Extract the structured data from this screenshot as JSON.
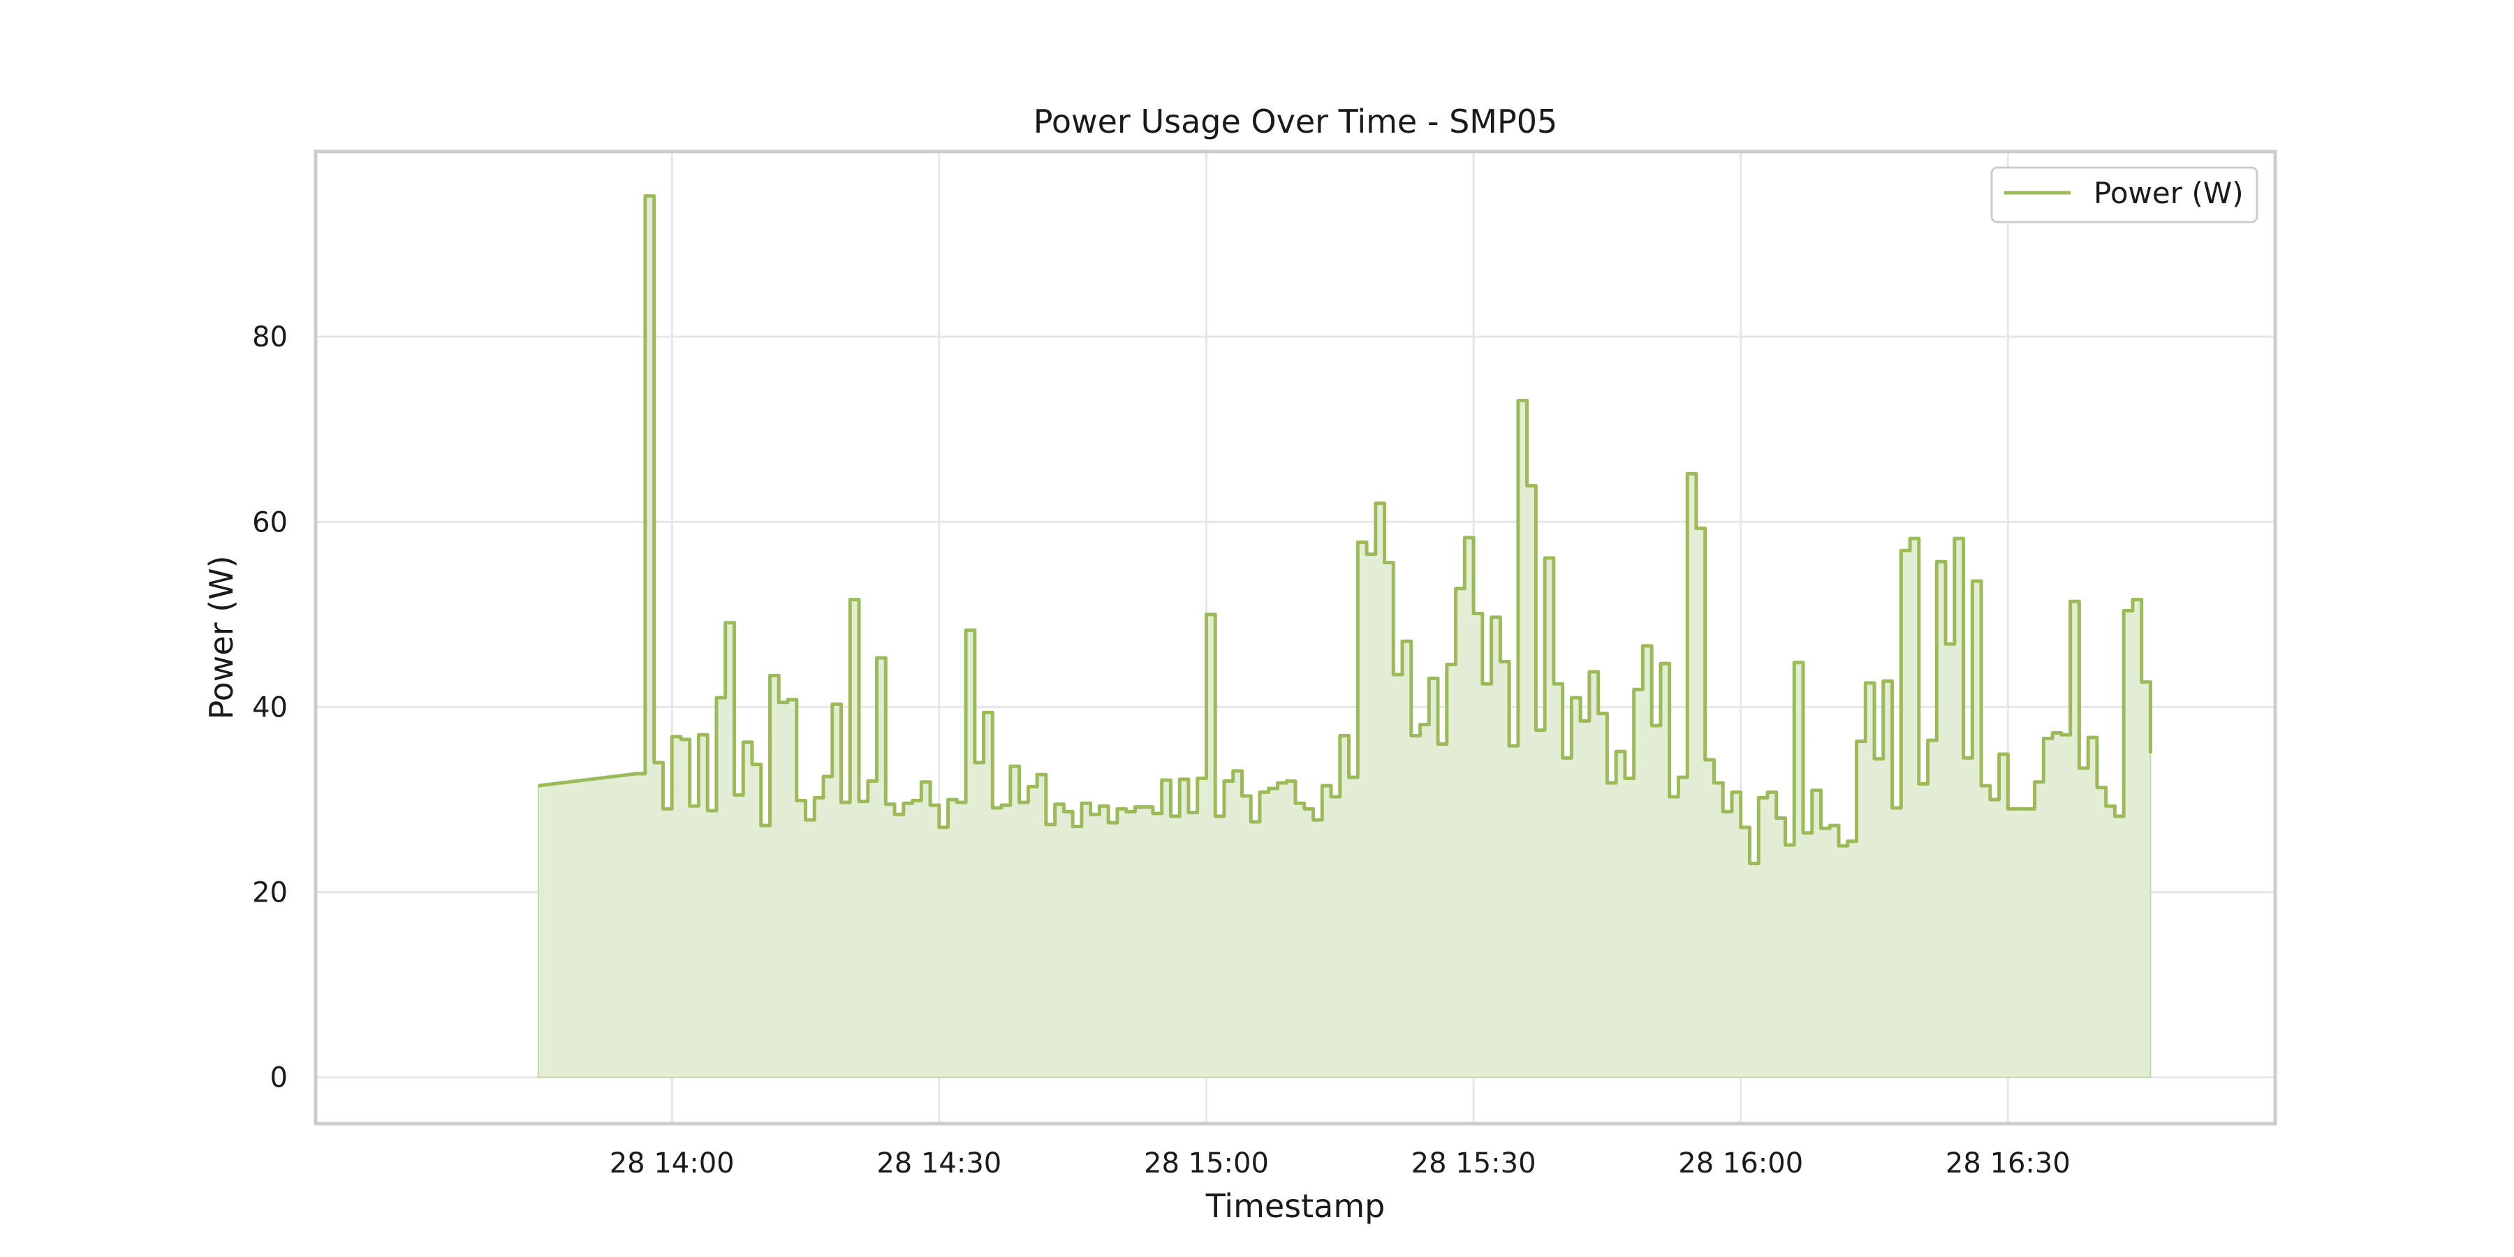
{
  "chart_data": {
    "type": "area",
    "title": "Power Usage Over Time - SMP05",
    "xlabel": "Timestamp",
    "ylabel": "Power (W)",
    "ylim": [
      -5,
      100
    ],
    "xlim": [
      "2024-01-28 13:20",
      "2024-01-28 17:00"
    ],
    "yticks": [
      0,
      20,
      40,
      60,
      80
    ],
    "xticks": [
      {
        "t": "2024-01-28 14:00",
        "label": "28 14:00"
      },
      {
        "t": "2024-01-28 14:30",
        "label": "28 14:30"
      },
      {
        "t": "2024-01-28 15:00",
        "label": "28 15:00"
      },
      {
        "t": "2024-01-28 15:30",
        "label": "28 15:30"
      },
      {
        "t": "2024-01-28 16:00",
        "label": "28 16:00"
      },
      {
        "t": "2024-01-28 16:30",
        "label": "28 16:30"
      }
    ],
    "grid": true,
    "legend_position": "upper right",
    "series": [
      {
        "name": "Power (W)",
        "color": "#9bbb59",
        "fill_color": "#e3ecd4",
        "x": [
          "2024-01-28 13:45",
          "2024-01-28 13:56",
          "2024-01-28 13:57",
          "2024-01-28 13:58",
          "2024-01-28 13:59",
          "2024-01-28 14:00",
          "2024-01-28 14:01",
          "2024-01-28 14:02",
          "2024-01-28 14:03",
          "2024-01-28 14:04",
          "2024-01-28 14:05",
          "2024-01-28 14:06",
          "2024-01-28 14:07",
          "2024-01-28 14:08",
          "2024-01-28 14:09",
          "2024-01-28 14:10",
          "2024-01-28 14:11",
          "2024-01-28 14:12",
          "2024-01-28 14:13",
          "2024-01-28 14:14",
          "2024-01-28 14:15",
          "2024-01-28 14:16",
          "2024-01-28 14:17",
          "2024-01-28 14:18",
          "2024-01-28 14:19",
          "2024-01-28 14:20",
          "2024-01-28 14:21",
          "2024-01-28 14:22",
          "2024-01-28 14:23",
          "2024-01-28 14:24",
          "2024-01-28 14:25",
          "2024-01-28 14:26",
          "2024-01-28 14:27",
          "2024-01-28 14:28",
          "2024-01-28 14:29",
          "2024-01-28 14:30",
          "2024-01-28 14:31",
          "2024-01-28 14:32",
          "2024-01-28 14:33",
          "2024-01-28 14:34",
          "2024-01-28 14:35",
          "2024-01-28 14:36",
          "2024-01-28 14:37",
          "2024-01-28 14:38",
          "2024-01-28 14:39",
          "2024-01-28 14:40",
          "2024-01-28 14:41",
          "2024-01-28 14:42",
          "2024-01-28 14:43",
          "2024-01-28 14:44",
          "2024-01-28 14:45",
          "2024-01-28 14:46",
          "2024-01-28 14:47",
          "2024-01-28 14:48",
          "2024-01-28 14:49",
          "2024-01-28 14:50",
          "2024-01-28 14:51",
          "2024-01-28 14:52",
          "2024-01-28 14:53",
          "2024-01-28 14:54",
          "2024-01-28 14:55",
          "2024-01-28 14:56",
          "2024-01-28 14:57",
          "2024-01-28 14:58",
          "2024-01-28 14:59",
          "2024-01-28 15:00",
          "2024-01-28 15:01",
          "2024-01-28 15:02",
          "2024-01-28 15:03",
          "2024-01-28 15:04",
          "2024-01-28 15:05",
          "2024-01-28 15:06",
          "2024-01-28 15:07",
          "2024-01-28 15:08",
          "2024-01-28 15:09",
          "2024-01-28 15:10",
          "2024-01-28 15:11",
          "2024-01-28 15:12",
          "2024-01-28 15:13",
          "2024-01-28 15:14",
          "2024-01-28 15:15",
          "2024-01-28 15:16",
          "2024-01-28 15:17",
          "2024-01-28 15:18",
          "2024-01-28 15:19",
          "2024-01-28 15:20",
          "2024-01-28 15:21",
          "2024-01-28 15:22",
          "2024-01-28 15:23",
          "2024-01-28 15:24",
          "2024-01-28 15:25",
          "2024-01-28 15:26",
          "2024-01-28 15:27",
          "2024-01-28 15:28",
          "2024-01-28 15:29",
          "2024-01-28 15:30",
          "2024-01-28 15:31",
          "2024-01-28 15:32",
          "2024-01-28 15:33",
          "2024-01-28 15:34",
          "2024-01-28 15:35",
          "2024-01-28 15:36",
          "2024-01-28 15:37",
          "2024-01-28 15:38",
          "2024-01-28 15:39",
          "2024-01-28 15:40",
          "2024-01-28 15:41",
          "2024-01-28 15:42",
          "2024-01-28 15:43",
          "2024-01-28 15:44",
          "2024-01-28 15:45",
          "2024-01-28 15:46",
          "2024-01-28 15:47",
          "2024-01-28 15:48",
          "2024-01-28 15:49",
          "2024-01-28 15:50",
          "2024-01-28 15:51",
          "2024-01-28 15:52",
          "2024-01-28 15:53",
          "2024-01-28 15:54",
          "2024-01-28 15:55",
          "2024-01-28 15:56",
          "2024-01-28 15:57",
          "2024-01-28 15:58",
          "2024-01-28 15:59",
          "2024-01-28 16:00",
          "2024-01-28 16:01",
          "2024-01-28 16:02",
          "2024-01-28 16:03",
          "2024-01-28 16:04",
          "2024-01-28 16:05",
          "2024-01-28 16:06",
          "2024-01-28 16:07",
          "2024-01-28 16:08",
          "2024-01-28 16:09",
          "2024-01-28 16:10",
          "2024-01-28 16:11",
          "2024-01-28 16:12",
          "2024-01-28 16:13",
          "2024-01-28 16:14",
          "2024-01-28 16:15",
          "2024-01-28 16:16",
          "2024-01-28 16:17",
          "2024-01-28 16:18",
          "2024-01-28 16:19",
          "2024-01-28 16:20",
          "2024-01-28 16:21",
          "2024-01-28 16:22",
          "2024-01-28 16:23",
          "2024-01-28 16:24",
          "2024-01-28 16:25",
          "2024-01-28 16:26",
          "2024-01-28 16:27",
          "2024-01-28 16:28",
          "2024-01-28 16:29",
          "2024-01-28 16:30",
          "2024-01-28 16:31",
          "2024-01-28 16:32",
          "2024-01-28 16:33",
          "2024-01-28 16:34",
          "2024-01-28 16:35",
          "2024-01-28 16:36",
          "2024-01-28 16:37",
          "2024-01-28 16:38",
          "2024-01-28 16:39",
          "2024-01-28 16:40",
          "2024-01-28 16:41",
          "2024-01-28 16:42",
          "2024-01-28 16:43",
          "2024-01-28 16:44",
          "2024-01-28 16:45",
          "2024-01-28 16:46"
        ],
        "values": [
          31.5,
          32.8,
          95.2,
          34.0,
          29.0,
          36.8,
          36.5,
          29.3,
          37.0,
          28.8,
          41.0,
          49.1,
          30.5,
          36.2,
          33.8,
          27.2,
          43.4,
          40.5,
          40.8,
          29.9,
          27.8,
          30.2,
          32.5,
          40.3,
          29.7,
          51.6,
          29.8,
          32.0,
          45.3,
          29.5,
          28.4,
          29.6,
          29.9,
          31.9,
          29.4,
          27.0,
          30.0,
          29.7,
          48.3,
          34.0,
          39.4,
          29.1,
          29.4,
          33.6,
          29.7,
          31.4,
          32.7,
          27.3,
          29.5,
          28.7,
          27.1,
          29.6,
          28.4,
          29.3,
          27.5,
          29.0,
          28.7,
          29.2,
          29.2,
          28.5,
          32.1,
          28.2,
          32.2,
          28.6,
          32.3,
          50.0,
          28.2,
          32.0,
          33.1,
          30.4,
          27.6,
          30.8,
          31.2,
          31.8,
          32.0,
          29.6,
          29.0,
          27.8,
          31.5,
          30.3,
          36.9,
          32.4,
          57.8,
          56.5,
          62.0,
          55.6,
          43.5,
          47.1,
          36.9,
          38.1,
          43.1,
          36.0,
          44.6,
          52.8,
          58.3,
          50.1,
          42.5,
          49.7,
          44.9,
          35.8,
          73.1,
          63.9,
          37.5,
          56.1,
          42.5,
          34.5,
          41.0,
          38.5,
          43.8,
          39.3,
          31.8,
          35.2,
          32.3,
          41.9,
          46.6,
          38.0,
          44.7,
          30.3,
          32.4,
          65.2,
          59.3,
          34.3,
          31.8,
          28.7,
          30.8,
          27.0,
          23.1,
          30.2,
          30.8,
          28.0,
          25.1,
          44.8,
          26.4,
          31.0,
          26.9,
          27.2,
          25.0,
          25.5,
          36.3,
          42.6,
          34.4,
          42.8,
          29.1,
          56.9,
          58.2,
          31.7,
          36.4,
          55.7,
          46.8,
          58.2,
          34.5,
          53.6,
          31.5,
          30.0,
          34.9,
          29.0,
          29.0,
          29.0,
          31.9,
          36.6,
          37.2,
          37.0,
          51.4,
          33.4,
          36.7,
          31.3,
          29.3,
          28.2,
          50.4,
          51.6,
          42.7,
          35.0
        ]
      }
    ]
  }
}
